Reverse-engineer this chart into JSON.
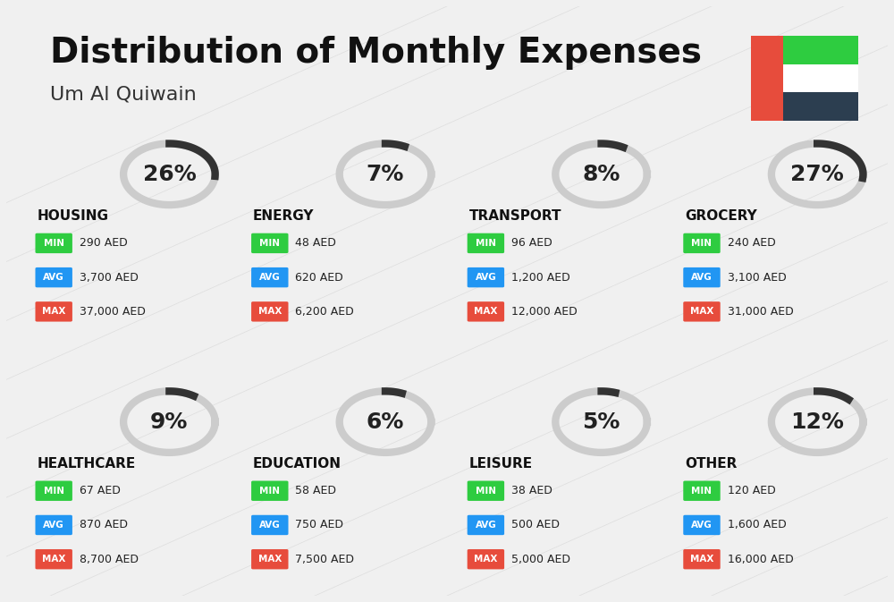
{
  "title": "Distribution of Monthly Expenses",
  "subtitle": "Um Al Quiwain",
  "background_color": "#f0f0f0",
  "categories": [
    {
      "name": "HOUSING",
      "pct": 26,
      "icon": "🏢",
      "min_val": "290 AED",
      "avg_val": "3,700 AED",
      "max_val": "37,000 AED",
      "row": 0,
      "col": 0
    },
    {
      "name": "ENERGY",
      "pct": 7,
      "icon": "⚡",
      "min_val": "48 AED",
      "avg_val": "620 AED",
      "max_val": "6,200 AED",
      "row": 0,
      "col": 1
    },
    {
      "name": "TRANSPORT",
      "pct": 8,
      "icon": "🚌",
      "min_val": "96 AED",
      "avg_val": "1,200 AED",
      "max_val": "12,000 AED",
      "row": 0,
      "col": 2
    },
    {
      "name": "GROCERY",
      "pct": 27,
      "icon": "🛒",
      "min_val": "240 AED",
      "avg_val": "3,100 AED",
      "max_val": "31,000 AED",
      "row": 0,
      "col": 3
    },
    {
      "name": "HEALTHCARE",
      "pct": 9,
      "icon": "💊",
      "min_val": "67 AED",
      "avg_val": "870 AED",
      "max_val": "8,700 AED",
      "row": 1,
      "col": 0
    },
    {
      "name": "EDUCATION",
      "pct": 6,
      "icon": "🎓",
      "min_val": "58 AED",
      "avg_val": "750 AED",
      "max_val": "7,500 AED",
      "row": 1,
      "col": 1
    },
    {
      "name": "LEISURE",
      "pct": 5,
      "icon": "🛍",
      "min_val": "38 AED",
      "avg_val": "500 AED",
      "max_val": "5,000 AED",
      "row": 1,
      "col": 2
    },
    {
      "name": "OTHER",
      "pct": 12,
      "icon": "💰",
      "min_val": "120 AED",
      "avg_val": "1,600 AED",
      "max_val": "16,000 AED",
      "row": 1,
      "col": 3
    }
  ],
  "min_color": "#2ecc40",
  "avg_color": "#2196f3",
  "max_color": "#e74c3c",
  "label_color": "#ffffff",
  "arc_color": "#333333",
  "arc_bg_color": "#cccccc",
  "title_fontsize": 28,
  "subtitle_fontsize": 16,
  "cat_fontsize": 11,
  "val_fontsize": 10,
  "pct_fontsize": 18
}
